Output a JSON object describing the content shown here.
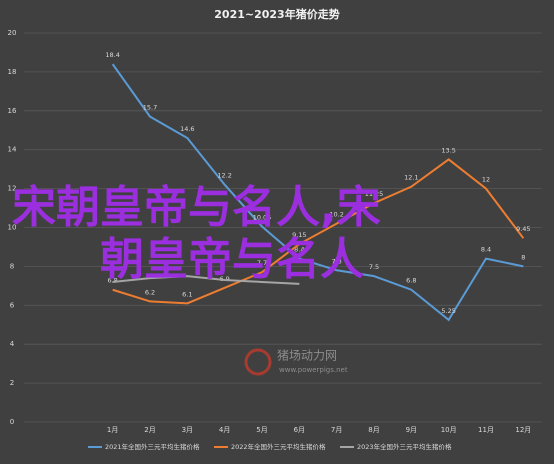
{
  "chart_data": {
    "type": "line",
    "title": "2021~2023年猪价走势",
    "categories": [
      "1月",
      "2月",
      "3月",
      "4月",
      "5月",
      "6月",
      "7月",
      "8月",
      "9月",
      "10月",
      "11月",
      "12月"
    ],
    "series": [
      {
        "name": "2021年全国外三元平均生猪价格",
        "color": "#5b9bd5",
        "values": [
          18.4,
          15.7,
          14.6,
          12.2,
          10.05,
          8.4,
          7.8,
          7.5,
          6.8,
          5.25,
          8.4,
          8
        ]
      },
      {
        "name": "2022年全国外三元平均生猪价格",
        "color": "#ed7d31",
        "values": [
          6.8,
          6.2,
          6.1,
          6.9,
          7.7,
          9.15,
          10.2,
          11.25,
          12.1,
          13.5,
          12,
          9.45
        ]
      },
      {
        "name": "2023年全国外三元平均生猪价格",
        "color": "#a5a5a5",
        "values": [
          7.2,
          7.4,
          7.5,
          7.3,
          7.2,
          7.1,
          null,
          null,
          null,
          null,
          null,
          null
        ]
      }
    ],
    "ylim": [
      0,
      20
    ],
    "yticks": [
      0,
      2,
      4,
      6,
      8,
      10,
      12,
      14,
      16,
      18,
      20
    ],
    "grid": true,
    "legend": "bottom",
    "watermark": [
      "猪场动力网",
      "www.powerpigs.net"
    ],
    "overlay": [
      "宋朝皇帝与名人,宋",
      "朝皇帝与名人"
    ]
  }
}
